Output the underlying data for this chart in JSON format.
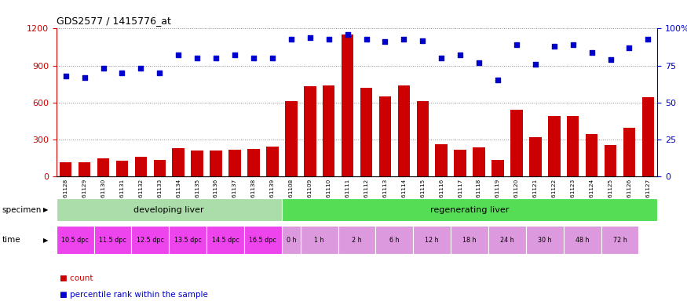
{
  "title": "GDS2577 / 1415776_at",
  "samples": [
    "GSM161128",
    "GSM161129",
    "GSM161130",
    "GSM161131",
    "GSM161132",
    "GSM161133",
    "GSM161134",
    "GSM161135",
    "GSM161136",
    "GSM161137",
    "GSM161138",
    "GSM161139",
    "GSM161108",
    "GSM161109",
    "GSM161110",
    "GSM161111",
    "GSM161112",
    "GSM161113",
    "GSM161114",
    "GSM161115",
    "GSM161116",
    "GSM161117",
    "GSM161118",
    "GSM161119",
    "GSM161120",
    "GSM161121",
    "GSM161122",
    "GSM161123",
    "GSM161124",
    "GSM161125",
    "GSM161126",
    "GSM161127"
  ],
  "counts": [
    110,
    110,
    145,
    125,
    155,
    130,
    230,
    210,
    205,
    215,
    220,
    240,
    610,
    730,
    740,
    1155,
    720,
    650,
    735,
    610,
    260,
    215,
    235,
    130,
    540,
    315,
    490,
    490,
    345,
    255,
    390,
    640
  ],
  "percentiles": [
    68,
    67,
    73,
    70,
    73,
    70,
    82,
    80,
    80,
    82,
    80,
    80,
    93,
    94,
    93,
    96,
    93,
    91,
    93,
    92,
    80,
    82,
    77,
    65,
    89,
    76,
    88,
    89,
    84,
    79,
    87,
    93
  ],
  "bar_color": "#cc0000",
  "dot_color": "#0000cc",
  "ylim_left": [
    0,
    1200
  ],
  "ylim_right": [
    0,
    100
  ],
  "yticks_left": [
    0,
    300,
    600,
    900,
    1200
  ],
  "yticks_right": [
    0,
    25,
    50,
    75,
    100
  ],
  "ytick_labels_right": [
    "0",
    "25",
    "50",
    "75",
    "100%"
  ],
  "specimen_label": "specimen",
  "time_label": "time",
  "developing_liver_label": "developing liver",
  "regenerating_liver_label": "regenerating liver",
  "developing_color": "#aaddaa",
  "regenerating_color": "#55dd55",
  "time_dpc_color": "#ee44ee",
  "time_h_color": "#dd99dd",
  "legend_count_color": "#cc0000",
  "legend_dot_color": "#0000cc",
  "bg_color": "#ffffff",
  "grid_color": "#888888",
  "n_samples": 32,
  "n_developing": 12,
  "n_regenerating": 20
}
